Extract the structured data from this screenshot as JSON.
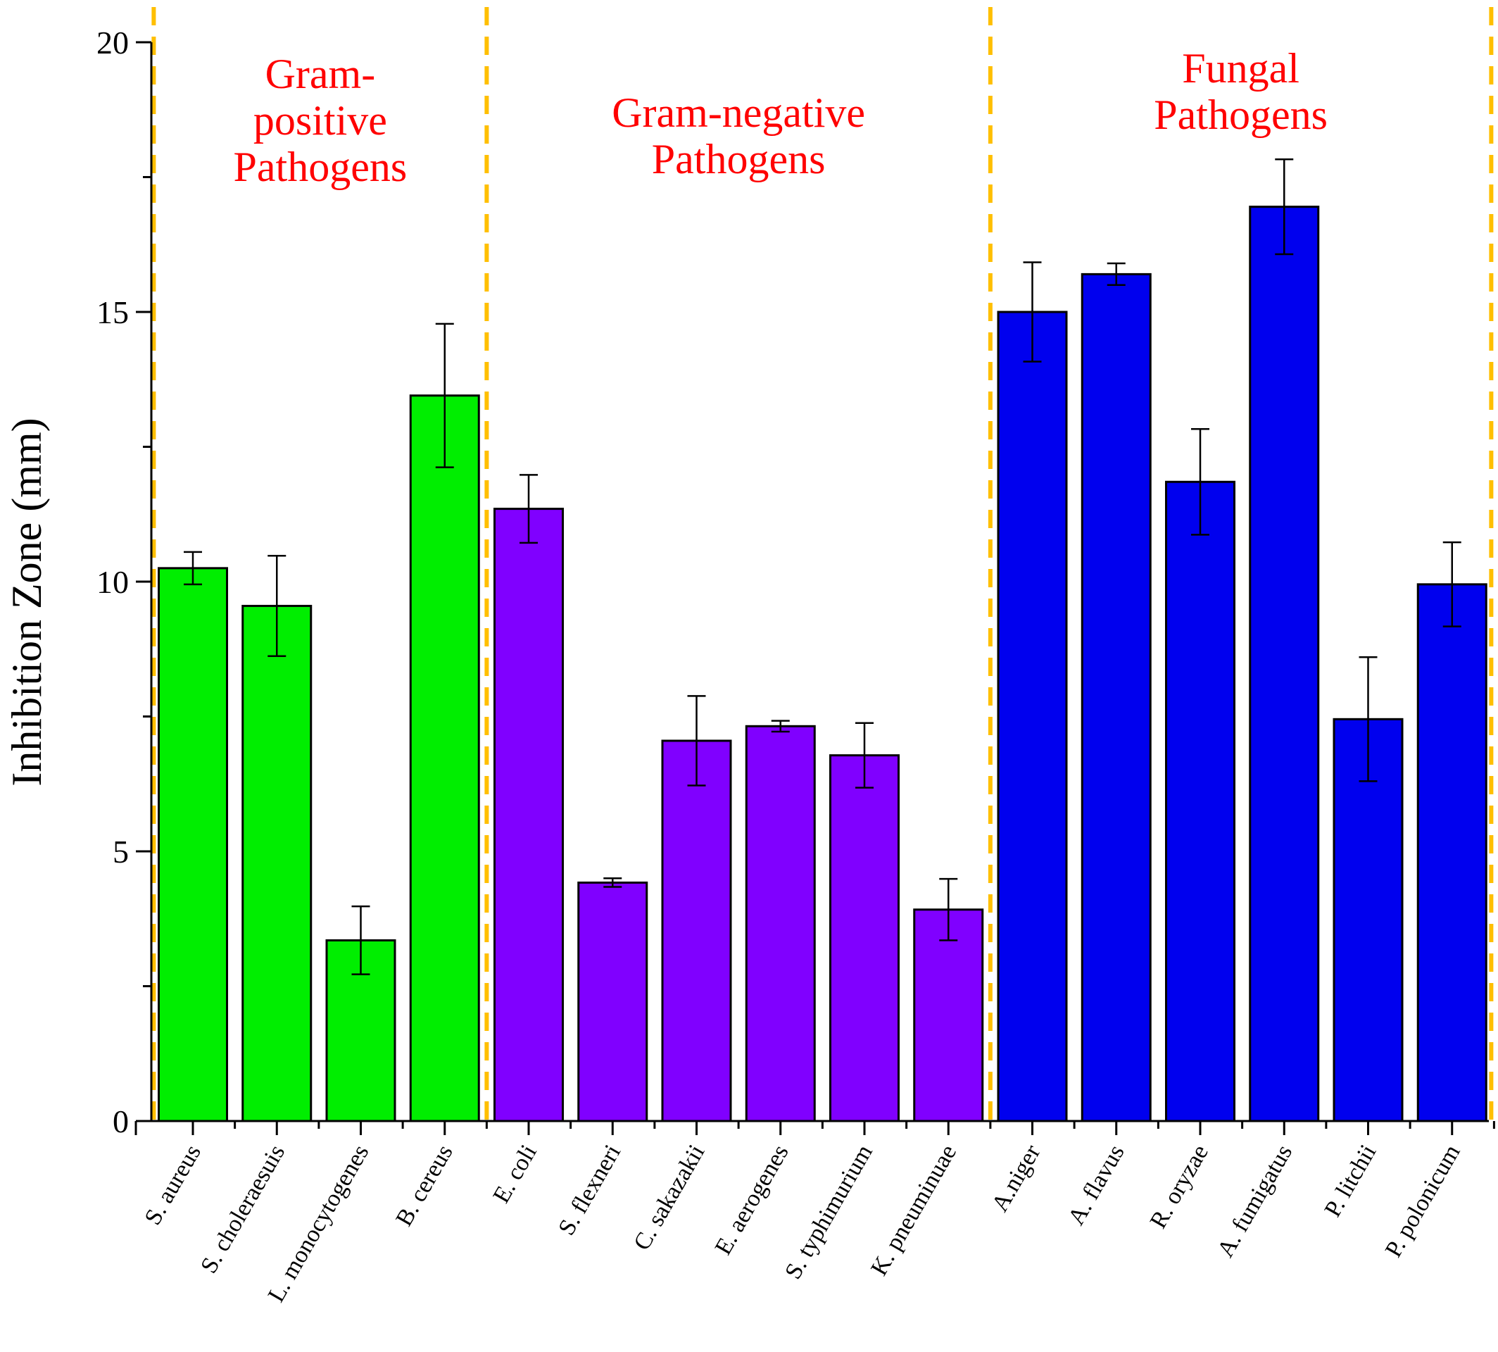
{
  "chart_data": {
    "type": "bar",
    "ylabel": "Inhibition Zone (mm)",
    "xlabel": "",
    "ylim": [
      0,
      20
    ],
    "yticks": [
      "0",
      "5",
      "10",
      "15",
      "20"
    ],
    "categories": [
      "S. aureus",
      "S. choleraesuis",
      "L. monocytogenes",
      "B. cereus",
      "E. coli",
      "S. flexneri",
      "C. sakazakii",
      "E. aerogenes",
      "S. typhimurium",
      "K. pneuminuae",
      "A.niger",
      "A. flavus",
      "R. oryzae",
      "A. fumigatus",
      "P. litchii",
      "P. polonicum"
    ],
    "values": [
      10.25,
      9.55,
      3.35,
      13.45,
      11.35,
      4.42,
      7.05,
      7.32,
      6.78,
      3.92,
      15.0,
      15.7,
      11.85,
      16.95,
      7.45,
      9.95
    ],
    "errors": [
      0.3,
      0.93,
      0.63,
      1.33,
      0.63,
      0.08,
      0.83,
      0.1,
      0.6,
      0.57,
      0.92,
      0.2,
      0.98,
      0.88,
      1.15,
      0.78
    ],
    "groups": [
      {
        "lines": [
          "Gram-",
          "positive",
          "Pathogens"
        ],
        "color": "#00ee00",
        "indices": [
          0,
          1,
          2,
          3
        ]
      },
      {
        "lines": [
          "Gram-negative",
          "Pathogens"
        ],
        "color": "#8000ff",
        "indices": [
          4,
          5,
          6,
          7,
          8,
          9
        ]
      },
      {
        "lines": [
          "Fungal",
          "Pathogens"
        ],
        "color": "#0000ee",
        "indices": [
          10,
          11,
          12,
          13,
          14,
          15
        ]
      }
    ],
    "divider_color": "#ffbf00",
    "group_label_color": "#ff0000",
    "grid": false,
    "legend": "none"
  }
}
